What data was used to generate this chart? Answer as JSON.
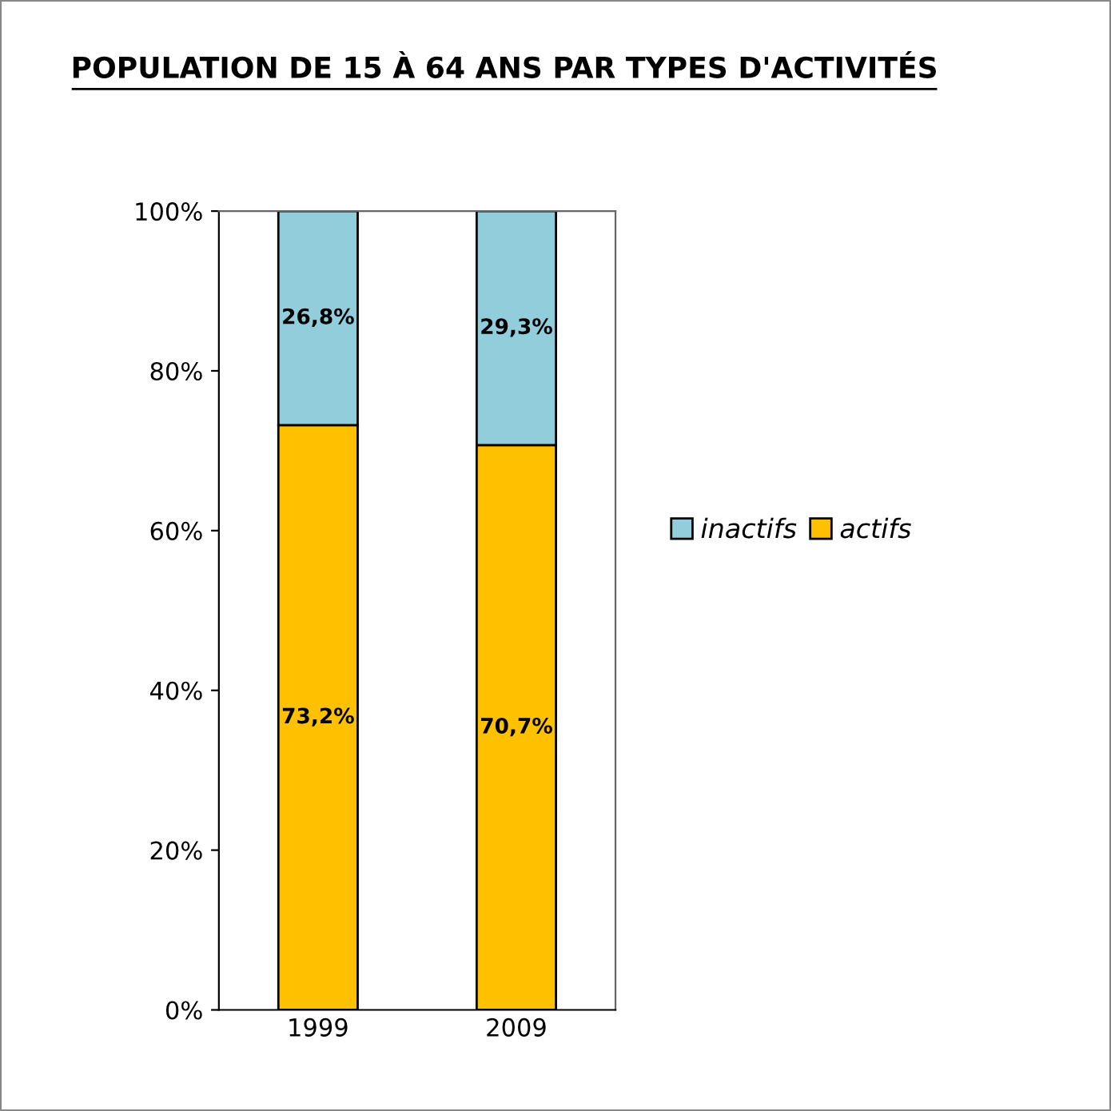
{
  "chart_data": {
    "type": "bar",
    "title": "POPULATION DE 15 À 64 ANS PAR TYPES D'ACTIVITÉS",
    "categories": [
      "1999",
      "2009"
    ],
    "stacked": true,
    "series": [
      {
        "name": "actifs",
        "color": "#ffc000",
        "values": [
          73.2,
          70.7
        ],
        "value_labels": [
          "73,2%",
          "70,7%"
        ]
      },
      {
        "name": "inactifs",
        "color": "#92cddc",
        "values": [
          26.8,
          29.3
        ],
        "value_labels": [
          "26,8%",
          "29,3%"
        ]
      }
    ],
    "ylim": [
      0,
      100
    ],
    "yticks": [
      {
        "value": 0,
        "label": "0%"
      },
      {
        "value": 20,
        "label": "20%"
      },
      {
        "value": 40,
        "label": "40%"
      },
      {
        "value": 60,
        "label": "60%"
      },
      {
        "value": 80,
        "label": "80%"
      },
      {
        "value": 100,
        "label": "100%"
      }
    ],
    "grid": false,
    "legend": "right"
  }
}
